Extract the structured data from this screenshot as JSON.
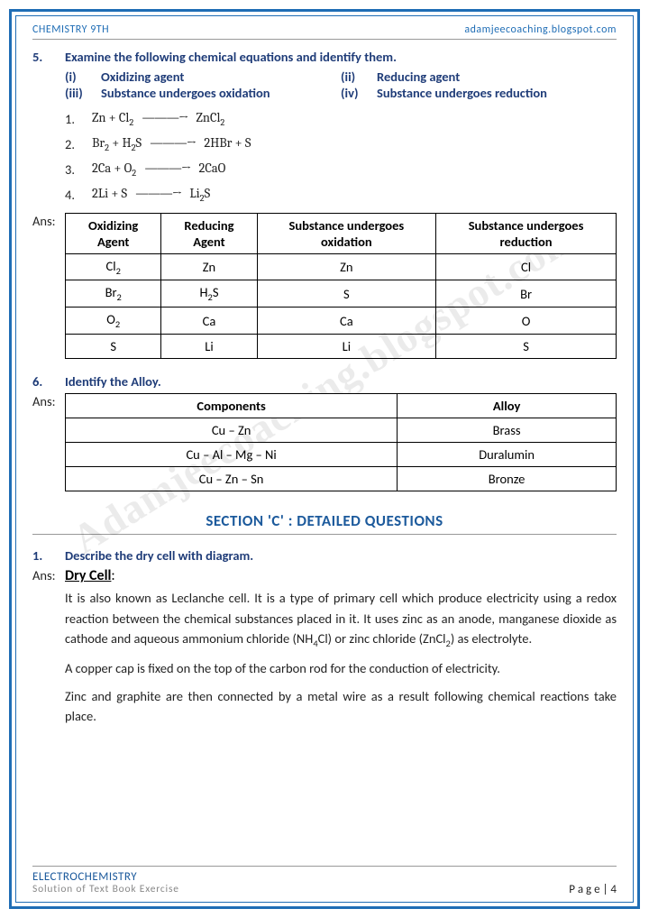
{
  "header": {
    "left": "CHEMISTRY 9TH",
    "right": "adamjeecoaching.blogspot.com"
  },
  "watermark": "Adamjeecoaching.blogspot.com",
  "q5": {
    "num": "5.",
    "title": "Examine the following chemical equations and identify them.",
    "opts": [
      {
        "lbl": "(i)",
        "txt": "Oxidizing agent"
      },
      {
        "lbl": "(ii)",
        "txt": "Reducing agent"
      },
      {
        "lbl": "(iii)",
        "txt": "Substance undergoes oxidation"
      },
      {
        "lbl": "(iv)",
        "txt": "Substance undergoes reduction"
      }
    ],
    "eqns": [
      {
        "n": "1.",
        "html": "Zn + Cl<sub>2</sub> <span class='arrow'>———→</span> ZnCl<sub>2</sub>"
      },
      {
        "n": "2.",
        "html": "Br<sub>2</sub> + H<sub>2</sub>S <span class='arrow'>———→</span> 2HBr + S"
      },
      {
        "n": "3.",
        "html": "2Ca + O<sub>2</sub> <span class='arrow'>———→</span> 2CaO"
      },
      {
        "n": "4.",
        "html": "2Li + S <span class='arrow'>———→</span> Li<sub>2</sub>S"
      }
    ],
    "ansLabel": "Ans:",
    "table": {
      "headers": [
        "Oxidizing Agent",
        "Reducing Agent",
        "Substance undergoes oxidation",
        "Substance undergoes reduction"
      ],
      "rows": [
        [
          "Cl<sub>2</sub>",
          "Zn",
          "Zn",
          "Cl"
        ],
        [
          "Br<sub>2</sub>",
          "H<sub>2</sub>S",
          "S",
          "Br"
        ],
        [
          "O<sub>2</sub>",
          "Ca",
          "Ca",
          "O"
        ],
        [
          "S",
          "Li",
          "Li",
          "S"
        ]
      ]
    }
  },
  "q6": {
    "num": "6.",
    "title": "Identify the Alloy.",
    "ansLabel": "Ans:",
    "table": {
      "headers": [
        "Components",
        "Alloy"
      ],
      "rows": [
        [
          "Cu – Zn",
          "Brass"
        ],
        [
          "Cu – Al – Mg – Ni",
          "Duralumin"
        ],
        [
          "Cu – Zn – Sn",
          "Bronze"
        ]
      ]
    }
  },
  "sectionC": "SECTION 'C' : DETAILED QUESTIONS",
  "q1": {
    "num": "1.",
    "title": "Describe the dry cell with diagram.",
    "ansLabel": "Ans:",
    "heading": "Dry Cell",
    "paras": [
      "It is also known as Leclanche cell. It is a type of primary cell which produce electricity using a redox reaction between the chemical substances placed in it. It uses zinc as an anode, manganese dioxide as cathode and aqueous ammonium chloride (NH<sub>4</sub>Cl) or zinc chloride (ZnCl<sub>2</sub>) as electrolyte.",
      "A copper cap is fixed on the top of the carbon rod for the conduction of electricity.",
      "Zinc and graphite are then connected by a metal wire as a result following chemical reactions take place."
    ]
  },
  "footer": {
    "title": "ELECTROCHEMISTRY",
    "sub": "Solution of Text Book Exercise",
    "page": "P a g e  | 4"
  },
  "colors": {
    "accent": "#1f6db5",
    "heading": "#1f3c78",
    "section": "#1c5a9c",
    "text": "#222222",
    "rule": "#999999"
  }
}
